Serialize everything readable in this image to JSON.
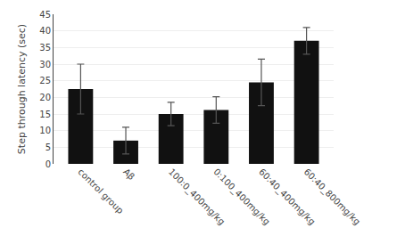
{
  "chart_data": {
    "type": "bar",
    "categories": [
      "control group",
      "Aβ",
      "100:0_400mg/kg",
      "0:100_400mg/kg",
      "60:40_400mg/kg",
      "60:40_800mg/kg"
    ],
    "values": [
      22.5,
      7.0,
      15.0,
      16.2,
      24.5,
      37.0
    ],
    "errors": [
      7.5,
      4.0,
      3.5,
      4.0,
      7.0,
      4.0
    ],
    "color": "#111111",
    "ylabel": "Step through latency (sec)",
    "ylim": [
      0,
      45
    ],
    "yticks": [
      0,
      5,
      10,
      15,
      20,
      25,
      30,
      35,
      40,
      45
    ],
    "grid": true
  }
}
